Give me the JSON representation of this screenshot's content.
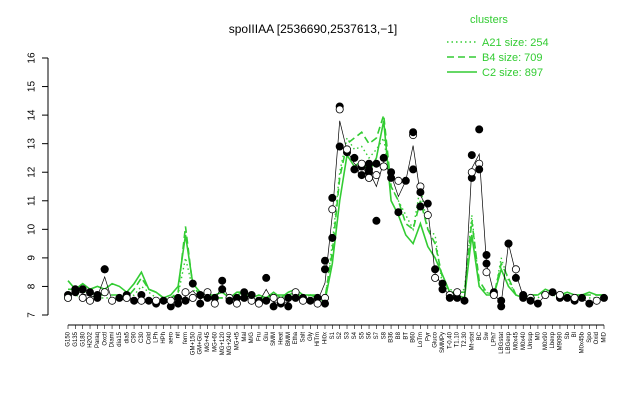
{
  "chart_data": {
    "type": "line",
    "title": "spoIIIAA [2536690,2537613,−1]",
    "xlabel": "",
    "ylabel": "",
    "ylim": [
      7,
      16
    ],
    "yticks": [
      7,
      8,
      9,
      10,
      11,
      12,
      13,
      14,
      15,
      16
    ],
    "grid": false,
    "legend_position": "top-right",
    "legend_title": "clusters",
    "colors": {
      "series": "#33cc33",
      "points": "#000000"
    },
    "x_tick_labels": [
      "G150",
      "G135",
      "G180",
      "H2O2",
      "Paraq",
      "Oxctl",
      "Diami",
      "dia15",
      "dia5",
      "C90",
      "C30",
      "Cold",
      "LPh",
      "HPh",
      "aero",
      "nit",
      "ferm",
      "GM+150",
      "GM+Glu",
      "MG+45",
      "MG+60",
      "MG+120",
      "MG+240",
      "MG+t5",
      "Mal",
      "M/G",
      "Fru",
      "Glu",
      "SMM",
      "Heat",
      "BMM",
      "Etha",
      "Salt",
      "Gly",
      "HiTm",
      "Hi0x",
      "S1",
      "S2",
      "S3",
      "S4",
      "S5",
      "S6",
      "S7",
      "S8",
      "B36",
      "B8",
      "BT",
      "B60",
      "LoTm",
      "Pyr",
      "Gluco",
      "SMMPy",
      "T-0.40",
      "T1.10",
      "T2.30",
      "Mt-stat",
      "BC",
      "Sw",
      "LPh7",
      "LBGstat",
      "LBGexp",
      "M0x45",
      "M0x40",
      "Unsup",
      "M0",
      "M0x90",
      "Lbexp",
      "M9090",
      "Sb",
      "Bl",
      "M0x45b",
      "Spo",
      "Oxid",
      "MiD"
    ],
    "series": [
      {
        "name": "A21 size: 254",
        "style": "dotted",
        "values": [
          7.8,
          7.7,
          7.6,
          7.7,
          7.6,
          7.6,
          7.6,
          7.6,
          7.6,
          7.7,
          8.0,
          7.8,
          7.6,
          7.5,
          7.6,
          7.7,
          9.0,
          7.9,
          7.6,
          7.6,
          7.6,
          7.6,
          7.6,
          7.6,
          7.6,
          7.5,
          7.6,
          7.5,
          7.6,
          7.6,
          7.6,
          7.7,
          7.6,
          7.6,
          7.5,
          7.5,
          9.5,
          12.0,
          13.2,
          12.8,
          12.9,
          12.5,
          12.8,
          13.2,
          11.5,
          11.0,
          10.5,
          10.0,
          11.5,
          10.0,
          9.8,
          8.0,
          7.9,
          7.8,
          7.9,
          10.5,
          8.0,
          7.8,
          7.6,
          9.0,
          8.2,
          7.7,
          7.6,
          7.6,
          7.6,
          7.8,
          7.7,
          7.6,
          7.6,
          7.6,
          7.6,
          7.6,
          7.6,
          7.6
        ]
      },
      {
        "name": "B4 size: 709",
        "style": "dashed",
        "values": [
          7.9,
          7.9,
          7.8,
          7.8,
          7.7,
          7.7,
          7.7,
          7.7,
          7.6,
          7.9,
          8.3,
          7.9,
          7.8,
          7.6,
          7.6,
          7.8,
          10.1,
          8.0,
          7.7,
          7.6,
          7.6,
          7.6,
          7.6,
          7.7,
          7.8,
          7.6,
          7.6,
          7.6,
          7.7,
          7.7,
          7.7,
          7.8,
          7.6,
          7.7,
          7.6,
          7.6,
          9.2,
          11.8,
          13.0,
          13.2,
          13.4,
          13.0,
          13.2,
          14.0,
          11.5,
          11.0,
          10.2,
          10.0,
          11.0,
          10.0,
          9.5,
          8.3,
          7.8,
          7.8,
          7.8,
          10.3,
          8.2,
          7.8,
          7.7,
          8.8,
          8.3,
          7.7,
          7.6,
          7.7,
          7.7,
          7.8,
          7.8,
          7.7,
          7.7,
          7.7,
          7.7,
          7.7,
          7.7,
          7.7
        ]
      },
      {
        "name": "C2 size: 897",
        "style": "solid",
        "values": [
          8.2,
          7.9,
          8.1,
          7.9,
          8.0,
          7.9,
          8.1,
          8.0,
          7.8,
          8.1,
          8.5,
          7.9,
          7.8,
          7.6,
          7.7,
          8.0,
          9.8,
          8.1,
          7.8,
          7.7,
          7.7,
          7.8,
          7.6,
          7.8,
          7.8,
          7.6,
          7.7,
          7.6,
          7.8,
          7.6,
          7.8,
          7.9,
          7.7,
          7.7,
          7.7,
          7.5,
          8.8,
          11.0,
          12.6,
          12.2,
          12.4,
          12.0,
          12.5,
          13.8,
          11.0,
          10.5,
          9.8,
          9.5,
          10.2,
          9.4,
          9.0,
          8.4,
          7.8,
          7.7,
          7.6,
          9.8,
          8.0,
          7.7,
          7.7,
          8.6,
          8.0,
          7.7,
          7.6,
          7.7,
          7.7,
          7.9,
          7.8,
          7.7,
          7.8,
          7.7,
          7.7,
          7.8,
          7.7,
          7.7
        ]
      }
    ],
    "points": [
      [
        0,
        7.7
      ],
      [
        0,
        7.6
      ],
      [
        1,
        7.9
      ],
      [
        1,
        7.8
      ],
      [
        2,
        7.6
      ],
      [
        2,
        7.9
      ],
      [
        3,
        7.8
      ],
      [
        3,
        7.5
      ],
      [
        4,
        7.6
      ],
      [
        4,
        7.7
      ],
      [
        5,
        7.8
      ],
      [
        5,
        8.6
      ],
      [
        5,
        8.6
      ],
      [
        6,
        7.5
      ],
      [
        7,
        7.6
      ],
      [
        8,
        7.7
      ],
      [
        8,
        7.6
      ],
      [
        9,
        7.5
      ],
      [
        10,
        7.7
      ],
      [
        10,
        7.5
      ],
      [
        11,
        7.5
      ],
      [
        12,
        7.4
      ],
      [
        12,
        7.5
      ],
      [
        13,
        7.5
      ],
      [
        14,
        7.3
      ],
      [
        14,
        7.5
      ],
      [
        15,
        7.4
      ],
      [
        15,
        7.6
      ],
      [
        16,
        7.8
      ],
      [
        16,
        7.5
      ],
      [
        17,
        8.1
      ],
      [
        17,
        7.6
      ],
      [
        18,
        7.4
      ],
      [
        18,
        7.7
      ],
      [
        19,
        7.8
      ],
      [
        19,
        7.6
      ],
      [
        20,
        7.6
      ],
      [
        20,
        7.4
      ],
      [
        21,
        7.9
      ],
      [
        21,
        8.2
      ],
      [
        22,
        7.6
      ],
      [
        22,
        7.5
      ],
      [
        23,
        7.6
      ],
      [
        23,
        7.4
      ],
      [
        24,
        7.8
      ],
      [
        24,
        7.6
      ],
      [
        25,
        7.5
      ],
      [
        25,
        7.7
      ],
      [
        26,
        7.5
      ],
      [
        26,
        7.4
      ],
      [
        27,
        8.3
      ],
      [
        27,
        7.5
      ],
      [
        28,
        7.6
      ],
      [
        28,
        7.3
      ],
      [
        29,
        7.4
      ],
      [
        29,
        7.5
      ],
      [
        30,
        7.6
      ],
      [
        30,
        7.3
      ],
      [
        31,
        7.8
      ],
      [
        31,
        7.6
      ],
      [
        32,
        7.6
      ],
      [
        32,
        7.5
      ],
      [
        33,
        7.5
      ],
      [
        34,
        7.6
      ],
      [
        34,
        7.4
      ],
      [
        35,
        8.9
      ],
      [
        35,
        8.6
      ],
      [
        35,
        7.6
      ],
      [
        35,
        7.4
      ],
      [
        36,
        9.7
      ],
      [
        36,
        10.7
      ],
      [
        36,
        11.1
      ],
      [
        37,
        14.3
      ],
      [
        37,
        14.2
      ],
      [
        37,
        12.9
      ],
      [
        38,
        12.7
      ],
      [
        38,
        12.8
      ],
      [
        39,
        12.5
      ],
      [
        39,
        12.1
      ],
      [
        40,
        12.0
      ],
      [
        40,
        11.9
      ],
      [
        40,
        12.2
      ],
      [
        40,
        12.3
      ],
      [
        41,
        12.1
      ],
      [
        41,
        12.0
      ],
      [
        41,
        11.8
      ],
      [
        41,
        12.3
      ],
      [
        42,
        12.3
      ],
      [
        42,
        11.9
      ],
      [
        42,
        10.3
      ],
      [
        43,
        12.5
      ],
      [
        43,
        12.2
      ],
      [
        44,
        11.8
      ],
      [
        44,
        12.0
      ],
      [
        45,
        11.7
      ],
      [
        45,
        10.6
      ],
      [
        46,
        11.7
      ],
      [
        47,
        13.3
      ],
      [
        47,
        13.4
      ],
      [
        47,
        12.1
      ],
      [
        48,
        11.5
      ],
      [
        48,
        11.3
      ],
      [
        48,
        10.8
      ],
      [
        49,
        10.5
      ],
      [
        49,
        10.9
      ],
      [
        50,
        8.6
      ],
      [
        50,
        8.3
      ],
      [
        51,
        8.1
      ],
      [
        51,
        7.9
      ],
      [
        52,
        7.7
      ],
      [
        52,
        7.6
      ],
      [
        53,
        7.6
      ],
      [
        53,
        7.8
      ],
      [
        54,
        7.5
      ],
      [
        55,
        11.8
      ],
      [
        55,
        12.0
      ],
      [
        55,
        12.6
      ],
      [
        56,
        13.5
      ],
      [
        56,
        12.3
      ],
      [
        56,
        12.1
      ],
      [
        57,
        8.8
      ],
      [
        57,
        8.5
      ],
      [
        57,
        9.1
      ],
      [
        58,
        7.8
      ],
      [
        58,
        7.7
      ],
      [
        59,
        7.3
      ],
      [
        59,
        7.5
      ],
      [
        60,
        9.5
      ],
      [
        60,
        9.5
      ],
      [
        61,
        8.3
      ],
      [
        61,
        8.6
      ],
      [
        62,
        7.7
      ],
      [
        62,
        7.6
      ],
      [
        63,
        7.6
      ],
      [
        63,
        7.5
      ],
      [
        64,
        7.4
      ],
      [
        65,
        7.7
      ],
      [
        66,
        7.8
      ],
      [
        67,
        7.6
      ],
      [
        67,
        7.7
      ],
      [
        68,
        7.6
      ],
      [
        69,
        7.5
      ],
      [
        69,
        7.6
      ],
      [
        70,
        7.6
      ],
      [
        71,
        7.4
      ],
      [
        72,
        7.5
      ],
      [
        73,
        7.6
      ]
    ]
  }
}
